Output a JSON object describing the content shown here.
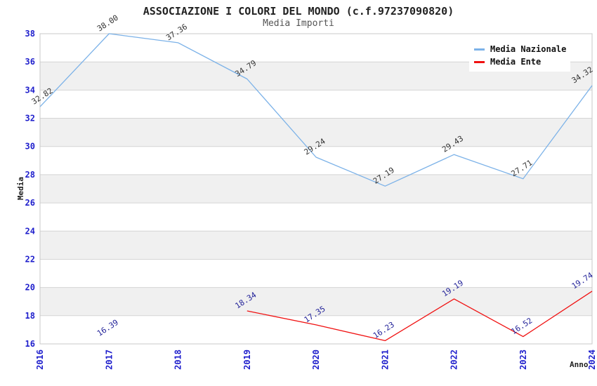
{
  "header": {
    "title": "ASSOCIAZIONE I COLORI DEL MONDO (c.f.97237090820)",
    "subtitle": "Media Importi"
  },
  "axes": {
    "y_label": "Media",
    "x_label": "Anno"
  },
  "legend": {
    "items": [
      {
        "label": "Media Nazionale",
        "color": "#7cb2e8"
      },
      {
        "label": "Media Ente",
        "color": "#f01111"
      }
    ]
  },
  "colors": {
    "tick_label": "#1e1ecc",
    "grid_line": "#d4d4d4",
    "plot_border": "#c8c8c8",
    "band_white": "#ffffff",
    "band_gray": "#f0f0f0"
  },
  "chart_data": {
    "type": "line",
    "title": "ASSOCIAZIONE I COLORI DEL MONDO (c.f.97237090820)",
    "subtitle": "Media Importi",
    "xlabel": "Anno",
    "ylabel": "Media",
    "categories": [
      "2016",
      "2017",
      "2018",
      "2019",
      "2020",
      "2021",
      "2022",
      "2023",
      "2024"
    ],
    "series": [
      {
        "name": "Media Nazionale",
        "color": "#7cb2e8",
        "label_color": "#333333",
        "values": [
          32.82,
          38.0,
          37.36,
          34.79,
          29.24,
          27.19,
          29.43,
          27.71,
          34.32
        ]
      },
      {
        "name": "Media Ente",
        "color": "#f01111",
        "label_color": "#222299",
        "values": [
          null,
          16.39,
          null,
          18.34,
          17.35,
          16.23,
          19.19,
          16.52,
          19.74
        ]
      }
    ],
    "ylim": [
      16,
      38
    ],
    "ytick_step": 2,
    "grid": true,
    "band_fill": "alternating",
    "legend_position": "top-right",
    "point_labels": "values with 2 decimals, rotated"
  }
}
